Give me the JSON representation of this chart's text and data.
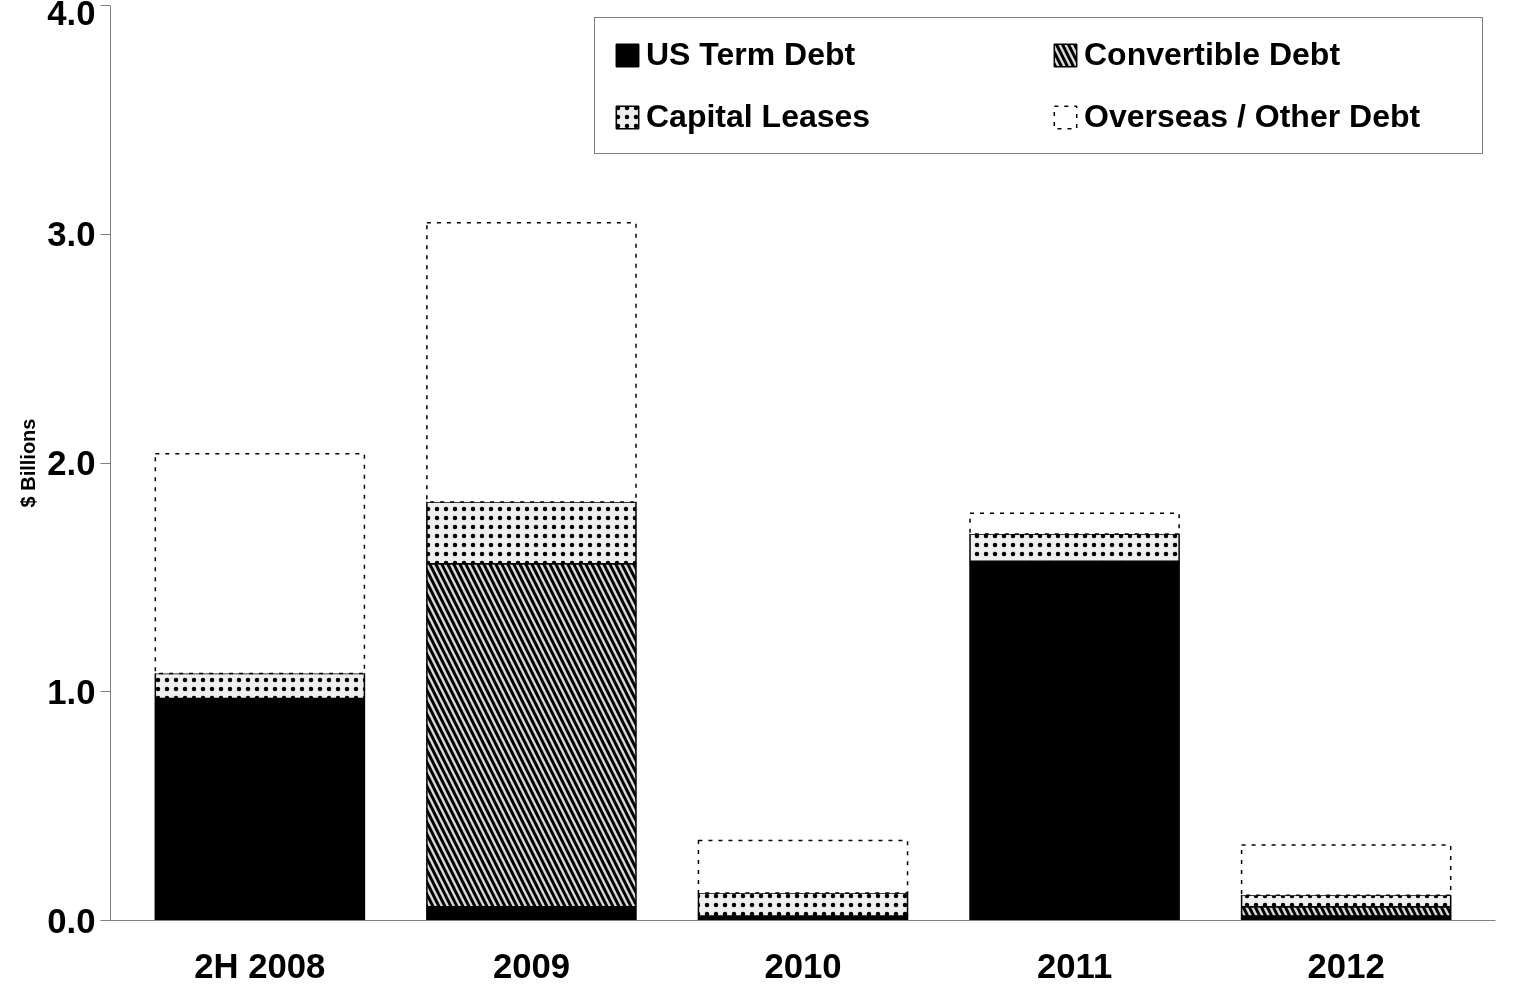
{
  "chart_data": {
    "type": "bar",
    "stacked": true,
    "ylabel": "$ Billions",
    "categories": [
      "2H 2008",
      "2009",
      "2010",
      "2011",
      "2012"
    ],
    "series": [
      {
        "name": "US Term Debt",
        "color": "#000000",
        "values": [
          0.97,
          0.06,
          0.02,
          1.57,
          0.02
        ]
      },
      {
        "name": "Convertible Debt",
        "color": "#d9d9d9",
        "values": [
          0,
          1.5,
          0,
          0,
          0.04
        ]
      },
      {
        "name": "Capital Leases",
        "color": "#eeeeee",
        "values": [
          0.11,
          0.27,
          0.1,
          0.12,
          0.05
        ]
      },
      {
        "name": "Overseas / Other Debt",
        "color": "#ffffff",
        "line_style": "dotted",
        "values": [
          0.96,
          1.22,
          0.23,
          0.09,
          0.22
        ]
      }
    ],
    "ylim": [
      0,
      4
    ],
    "yticks": [
      {
        "value": 0,
        "label": "0.0"
      },
      {
        "value": 1,
        "label": "1.0"
      },
      {
        "value": 2,
        "label": "2.0"
      },
      {
        "value": 3,
        "label": "3.0"
      },
      {
        "value": 4,
        "label": "4.0"
      }
    ],
    "grid": false,
    "legend": "top right"
  }
}
